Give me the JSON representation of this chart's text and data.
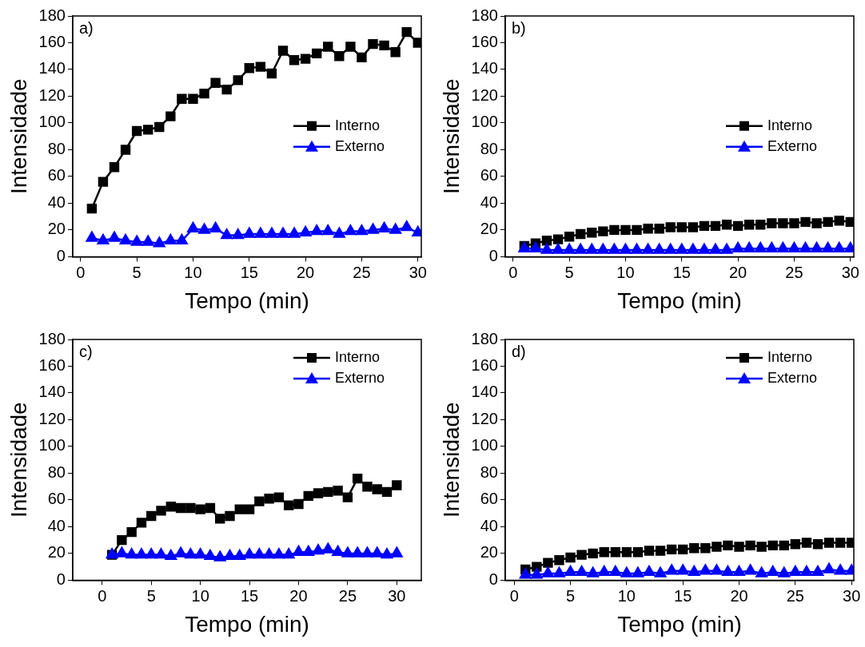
{
  "chart_data": [
    {
      "type": "line",
      "annotations": [
        "a)"
      ],
      "xlabel": "Tempo (min)",
      "ylabel": "Intensidade",
      "x": [
        1,
        2,
        3,
        4,
        5,
        6,
        7,
        8,
        9,
        10,
        11,
        12,
        13,
        14,
        15,
        16,
        17,
        18,
        19,
        20,
        21,
        22,
        23,
        24,
        25,
        26,
        27,
        28,
        29,
        30
      ],
      "xlim": [
        -0.7,
        30.3
      ],
      "xticks": [
        0,
        5,
        10,
        15,
        20,
        25,
        30
      ],
      "ylim": [
        0,
        180
      ],
      "yticks": [
        0,
        20,
        40,
        60,
        80,
        100,
        120,
        140,
        160,
        180
      ],
      "legend": "right",
      "grid": false,
      "line_style": "solid",
      "series": [
        {
          "name": "Interno",
          "color": "#000000",
          "marker": "square",
          "values": [
            36,
            56,
            67,
            80,
            94,
            95,
            97,
            105,
            118,
            118,
            122,
            130,
            125,
            132,
            141,
            142,
            137,
            154,
            147,
            148,
            152,
            157,
            150,
            157,
            149,
            159,
            158,
            153,
            168,
            160
          ]
        },
        {
          "name": "Externo",
          "color": "#0000ff",
          "marker": "triangle",
          "values": [
            14,
            12,
            14,
            12,
            11,
            11,
            10,
            12,
            12,
            21,
            20,
            21,
            16,
            16,
            17,
            17,
            17,
            17,
            17,
            18,
            19,
            19,
            17,
            19,
            19,
            20,
            21,
            20,
            22,
            18
          ]
        }
      ]
    },
    {
      "type": "line",
      "annotations": [
        "b)"
      ],
      "xlabel": "Tempo (min)",
      "ylabel": "Intensidade",
      "x": [
        1,
        2,
        3,
        4,
        5,
        6,
        7,
        8,
        9,
        10,
        11,
        12,
        13,
        14,
        15,
        16,
        17,
        18,
        19,
        20,
        21,
        22,
        23,
        24,
        25,
        26,
        27,
        28,
        29,
        30
      ],
      "xlim": [
        -0.7,
        30.3
      ],
      "xticks": [
        0,
        5,
        10,
        15,
        20,
        25,
        30
      ],
      "ylim": [
        0,
        180
      ],
      "yticks": [
        0,
        20,
        40,
        60,
        80,
        100,
        120,
        140,
        160,
        180
      ],
      "legend": "right",
      "grid": false,
      "line_style": "solid",
      "series": [
        {
          "name": "Interno",
          "color": "#000000",
          "marker": "square",
          "values": [
            8,
            10,
            12,
            13,
            15,
            17,
            18,
            19,
            20,
            20,
            20,
            21,
            21,
            22,
            22,
            22,
            23,
            23,
            24,
            23,
            24,
            24,
            25,
            25,
            25,
            26,
            25,
            26,
            27,
            26
          ]
        },
        {
          "name": "Externo",
          "color": "#0000ff",
          "marker": "triangle",
          "values": [
            6,
            6,
            5,
            5,
            5,
            5,
            5,
            5,
            5,
            5,
            5,
            5,
            5,
            5,
            5,
            5,
            5,
            5,
            5,
            6,
            6,
            6,
            6,
            6,
            6,
            6,
            6,
            6,
            6,
            6
          ]
        }
      ]
    },
    {
      "type": "line",
      "annotations": [
        "c)"
      ],
      "xlabel": "Tempo (min)",
      "ylabel": "Intensidade",
      "x": [
        1,
        2,
        3,
        4,
        5,
        6,
        7,
        8,
        9,
        10,
        11,
        12,
        13,
        14,
        15,
        16,
        17,
        18,
        19,
        20,
        21,
        22,
        23,
        24,
        25,
        26,
        27,
        28,
        29,
        30
      ],
      "xlim": [
        -3,
        32.5
      ],
      "xticks": [
        0,
        5,
        10,
        15,
        20,
        25,
        30
      ],
      "ylim": [
        0,
        180
      ],
      "yticks": [
        0,
        20,
        40,
        60,
        80,
        100,
        120,
        140,
        160,
        180
      ],
      "legend": "top right",
      "grid": false,
      "line_style": "solid",
      "series": [
        {
          "name": "Interno",
          "color": "#000000",
          "marker": "square",
          "values": [
            19,
            30,
            36,
            43,
            48,
            52,
            55,
            54,
            54,
            53,
            54,
            46,
            48,
            53,
            53,
            59,
            61,
            62,
            56,
            57,
            63,
            65,
            66,
            67,
            62,
            76,
            70,
            68,
            66,
            71
          ]
        },
        {
          "name": "Externo",
          "color": "#0000ff",
          "marker": "triangle",
          "values": [
            19,
            20,
            19,
            19,
            19,
            19,
            18,
            20,
            19,
            19,
            18,
            17,
            18,
            18,
            19,
            19,
            19,
            19,
            19,
            21,
            21,
            22,
            23,
            21,
            20,
            20,
            20,
            20,
            19,
            20
          ]
        }
      ]
    },
    {
      "type": "line",
      "annotations": [
        "d)"
      ],
      "xlabel": "Tempo (min)",
      "ylabel": "Intensidade",
      "x": [
        1,
        2,
        3,
        4,
        5,
        6,
        7,
        8,
        9,
        10,
        11,
        12,
        13,
        14,
        15,
        16,
        17,
        18,
        19,
        20,
        21,
        22,
        23,
        24,
        25,
        26,
        27,
        28,
        29,
        30
      ],
      "xlim": [
        -0.8,
        30.2
      ],
      "xticks": [
        0,
        5,
        10,
        15,
        20,
        25,
        30
      ],
      "ylim": [
        0,
        180
      ],
      "yticks": [
        0,
        20,
        40,
        60,
        80,
        100,
        120,
        140,
        160,
        180
      ],
      "legend": "top right",
      "grid": false,
      "line_style": "solid",
      "series": [
        {
          "name": "Interno",
          "color": "#000000",
          "marker": "square",
          "values": [
            8,
            10,
            13,
            15,
            17,
            19,
            20,
            21,
            21,
            21,
            21,
            22,
            22,
            23,
            23,
            24,
            24,
            25,
            26,
            25,
            26,
            25,
            26,
            26,
            27,
            28,
            27,
            28,
            28,
            28
          ]
        },
        {
          "name": "Externo",
          "color": "#0000ff",
          "marker": "triangle",
          "values": [
            4,
            4,
            5,
            5,
            6,
            6,
            5,
            6,
            6,
            5,
            5,
            6,
            5,
            7,
            7,
            6,
            7,
            7,
            6,
            6,
            7,
            5,
            6,
            5,
            6,
            6,
            6,
            8,
            7,
            7
          ]
        }
      ]
    }
  ]
}
